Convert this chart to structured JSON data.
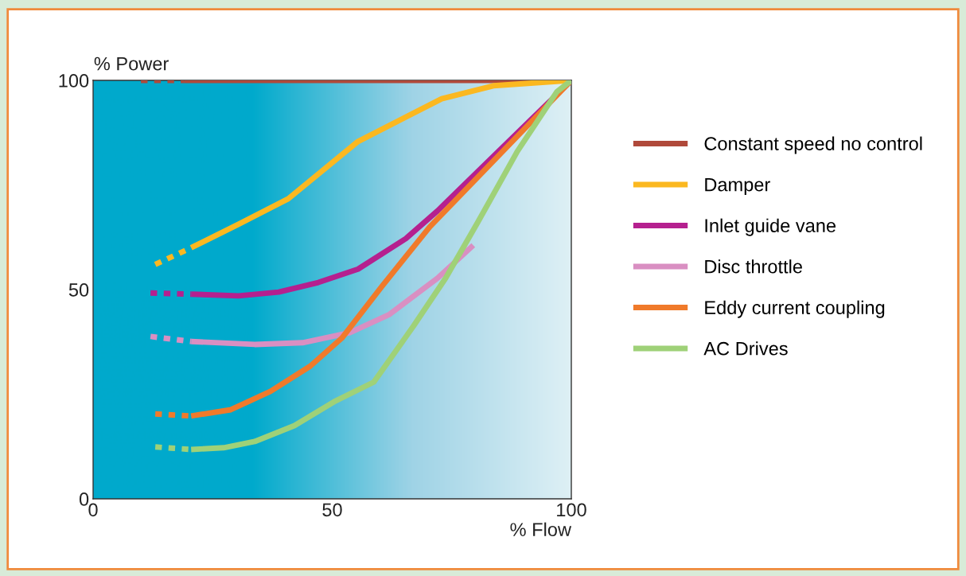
{
  "chart_data": {
    "type": "line",
    "xlabel": "% Flow",
    "ylabel": "% Power",
    "xlim": [
      0,
      100
    ],
    "ylim": [
      0,
      100
    ],
    "xticks": [
      0,
      50,
      100
    ],
    "yticks": [
      0,
      50,
      100
    ],
    "grid": false,
    "legend": "right",
    "marker": "none",
    "series": [
      {
        "color": "#b0493a",
        "line_style": "dotted",
        "x": [
          10,
          19
        ],
        "values": [
          100,
          100
        ]
      },
      {
        "name": "Constant speed no control",
        "color": "#b0493a",
        "line_style": "solid",
        "x": [
          19,
          100
        ],
        "values": [
          100,
          100
        ]
      },
      {
        "color": "#fbb820",
        "line_style": "dotted",
        "x": [
          13,
          20.5
        ],
        "values": [
          56,
          60
        ]
      },
      {
        "name": "Damper",
        "color": "#fbb820",
        "line_style": "solid",
        "x": [
          20.5,
          30.4,
          40.8,
          55.4,
          72.9,
          83.7,
          100
        ],
        "values": [
          60,
          65.6,
          71.7,
          85.4,
          95.6,
          98.7,
          100
        ]
      },
      {
        "color": "#b5208f",
        "line_style": "dotted",
        "x": [
          12,
          20.5
        ],
        "values": [
          49.2,
          48.9
        ]
      },
      {
        "name": "Inlet guide vane",
        "color": "#b5208f",
        "line_style": "solid",
        "x": [
          20.5,
          30.4,
          38.8,
          47.1,
          55.4,
          65.4,
          72,
          100
        ],
        "values": [
          48.9,
          48.5,
          49.4,
          51.7,
          54.9,
          62.2,
          68.8,
          100
        ]
      },
      {
        "color": "#d98fc2",
        "line_style": "dotted",
        "x": [
          12,
          20.5
        ],
        "values": [
          38.8,
          37.6
        ]
      },
      {
        "name": "Disc throttle",
        "color": "#d98fc2",
        "line_style": "solid",
        "x": [
          20.5,
          33.8,
          43.8,
          53.7,
          62,
          72,
          79.5
        ],
        "values": [
          37.6,
          36.9,
          37.3,
          39.7,
          44.1,
          52.7,
          60.6
        ]
      },
      {
        "color": "#f07a2a",
        "line_style": "dotted",
        "x": [
          13,
          20.5
        ],
        "values": [
          20.3,
          19.8
        ]
      },
      {
        "name": "Eddy current coupling",
        "color": "#f07a2a",
        "line_style": "solid",
        "x": [
          20.5,
          28.8,
          37.1,
          45.4,
          52,
          60.4,
          70.4,
          100
        ],
        "values": [
          19.8,
          21.3,
          25.7,
          31.7,
          38.4,
          50.8,
          65,
          100
        ]
      },
      {
        "color": "#9fd178",
        "line_style": "dotted",
        "x": [
          13,
          20.5
        ],
        "values": [
          12.4,
          11.8
        ]
      },
      {
        "name": "AC Drives",
        "color": "#9fd178",
        "line_style": "solid",
        "x": [
          20.5,
          27.3,
          33.8,
          42.1,
          50.4,
          58.7,
          67,
          73.7,
          80.4,
          88.7,
          97,
          100
        ],
        "values": [
          11.8,
          12.2,
          13.7,
          17.5,
          23.2,
          27.9,
          41.3,
          52.7,
          66,
          83,
          97.3,
          100
        ]
      }
    ]
  }
}
